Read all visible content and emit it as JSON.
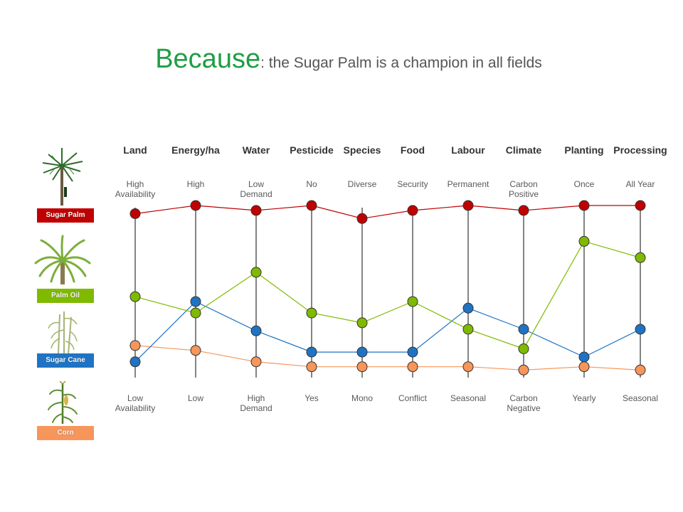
{
  "title": {
    "main": "Because",
    "sub": ": the Sugar Palm is a champion in all fields"
  },
  "legend": [
    {
      "label": "Sugar Palm",
      "color": "#c00000",
      "icon": "sugar-palm-tree-icon"
    },
    {
      "label": "Palm Oil",
      "color": "#7fba00",
      "icon": "oil-palm-icon"
    },
    {
      "label": "Sugar Cane",
      "color": "#1f73c4",
      "icon": "sugar-cane-icon"
    },
    {
      "label": "Corn",
      "color": "#f7965a",
      "icon": "corn-plant-icon"
    }
  ],
  "chart_data": {
    "type": "line",
    "subtype": "parallel-coordinates",
    "grid": false,
    "scale": [
      0,
      100
    ],
    "axes": [
      {
        "name": "Land",
        "top": [
          "High",
          "Availability"
        ],
        "bottom": [
          "Low",
          "Availability"
        ]
      },
      {
        "name": "Energy/ha",
        "top": [
          "High"
        ],
        "bottom": [
          "Low"
        ]
      },
      {
        "name": "Water",
        "top": [
          "Low",
          "Demand"
        ],
        "bottom": [
          "High",
          "Demand"
        ]
      },
      {
        "name": "Pesticide",
        "top": [
          "No"
        ],
        "bottom": [
          "Yes"
        ]
      },
      {
        "name": "Species",
        "top": [
          "Diverse"
        ],
        "bottom": [
          "Mono"
        ]
      },
      {
        "name": "Food",
        "top": [
          "Security"
        ],
        "bottom": [
          "Conflict"
        ]
      },
      {
        "name": "Labour",
        "top": [
          "Permanent"
        ],
        "bottom": [
          "Seasonal"
        ]
      },
      {
        "name": "Climate",
        "top": [
          "Carbon",
          "Positive"
        ],
        "bottom": [
          "Carbon",
          "Negative"
        ]
      },
      {
        "name": "Planting",
        "top": [
          "Once"
        ],
        "bottom": [
          "Yearly"
        ]
      },
      {
        "name": "Processing",
        "top": [
          "All Year"
        ],
        "bottom": [
          "Seasonal"
        ]
      }
    ],
    "series": [
      {
        "name": "Sugar Palm",
        "color": "#c00000",
        "values": [
          95,
          100,
          97,
          100,
          92,
          97,
          100,
          97,
          100,
          100
        ]
      },
      {
        "name": "Palm Oil",
        "color": "#7fba00",
        "values": [
          44,
          34,
          59,
          34,
          28,
          41,
          24,
          12,
          78,
          68
        ]
      },
      {
        "name": "Sugar Cane",
        "color": "#1f73c4",
        "values": [
          4,
          41,
          23,
          10,
          10,
          10,
          37,
          24,
          7,
          24
        ]
      },
      {
        "name": "Corn",
        "color": "#f7965a",
        "values": [
          14,
          11,
          4,
          1,
          1,
          1,
          1,
          -1,
          1,
          -1
        ]
      }
    ]
  }
}
